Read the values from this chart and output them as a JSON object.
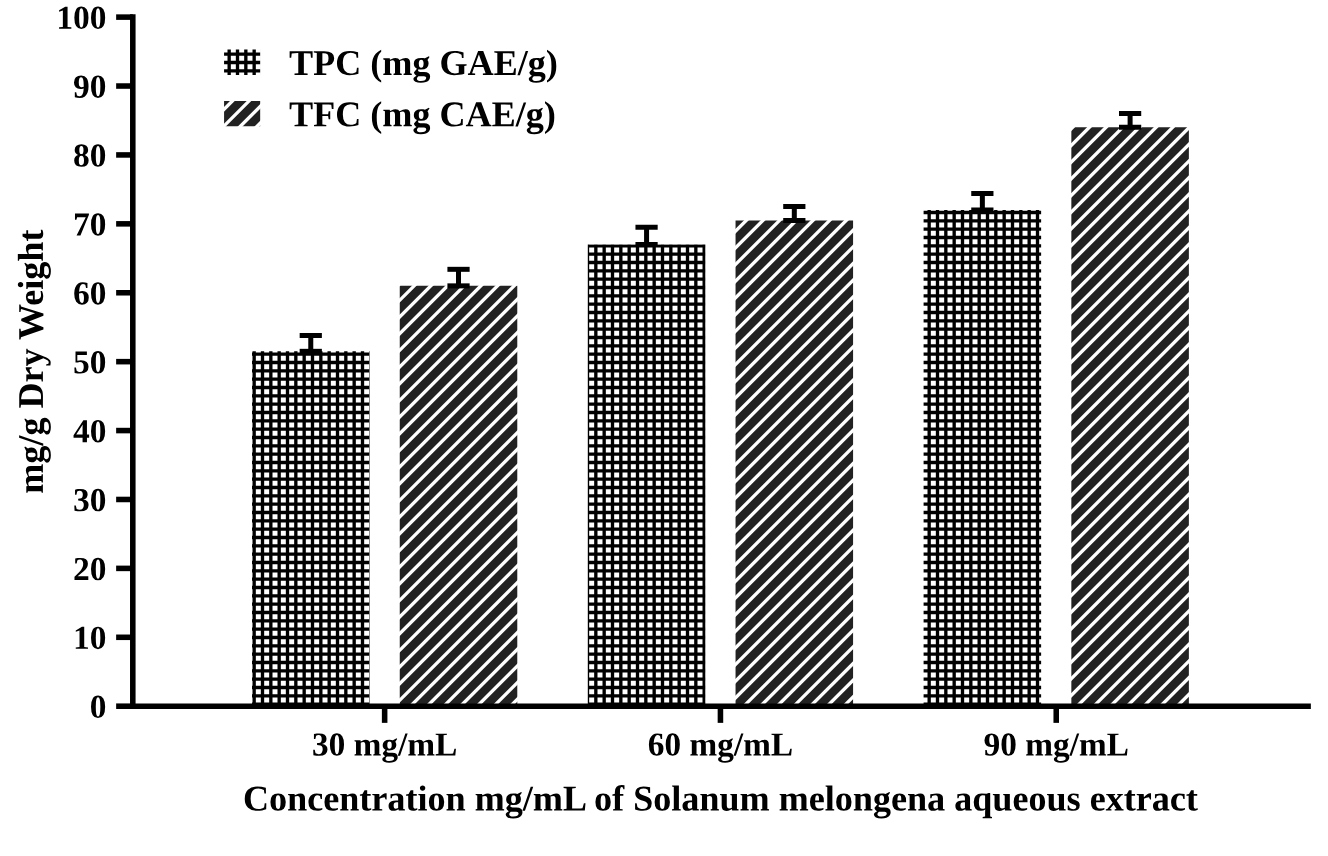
{
  "chart_data": {
    "type": "bar",
    "xlabel": "Concentration mg/mL of Solanum melongena aqueous extract",
    "ylabel": "mg/g Dry Weight",
    "categories": [
      "30 mg/mL",
      "60 mg/mL",
      "90 mg/mL"
    ],
    "series": [
      {
        "name": "TPC (mg GAE/g)",
        "color": "#ffffff",
        "values": [
          51.5,
          67,
          72
        ],
        "errors": [
          2.3,
          2.5,
          2.4
        ]
      },
      {
        "name": "TFC (mg CAE/g)",
        "color": "#222222",
        "values": [
          61,
          70.5,
          84
        ],
        "errors": [
          2.4,
          2,
          2
        ]
      }
    ],
    "ylim": [
      0,
      100
    ],
    "yticks": [
      0,
      10,
      20,
      30,
      40,
      50,
      60,
      70,
      80,
      90,
      100
    ],
    "grid": false,
    "legend": "top left"
  }
}
